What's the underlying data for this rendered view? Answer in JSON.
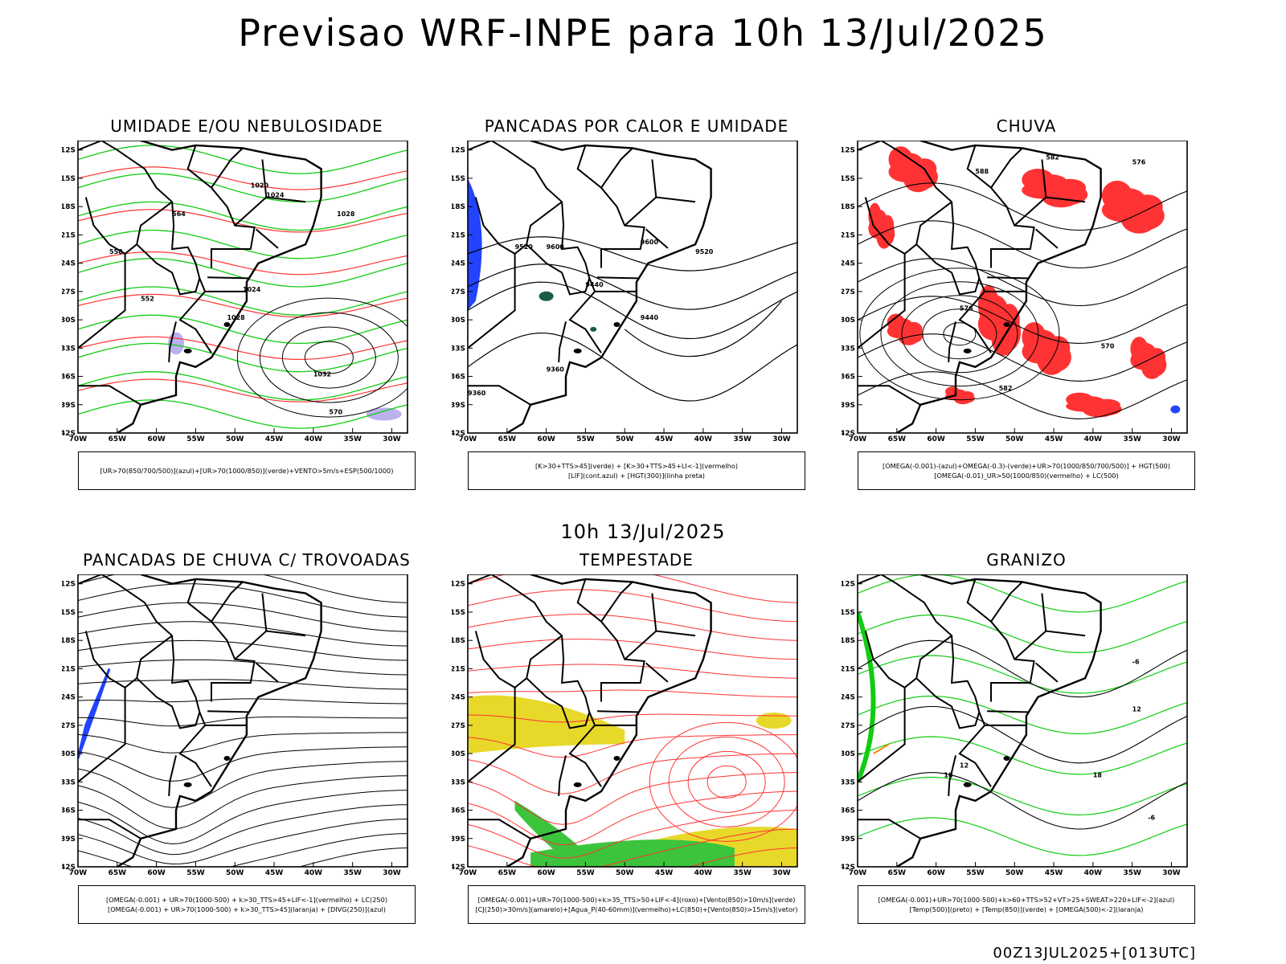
{
  "header": {
    "title": "Previsao WRF-INPE  para 10h 13/Jul/2025"
  },
  "mid_label": "10h 13/Jul/2025",
  "footer": "00Z13JUL2025+[013UTC]",
  "axes": {
    "lat_ticks": [
      "12S",
      "15S",
      "18S",
      "21S",
      "24S",
      "27S",
      "30S",
      "33S",
      "36S",
      "39S",
      "42S"
    ],
    "lon_ticks": [
      "70W",
      "65W",
      "60W",
      "55W",
      "50W",
      "45W",
      "40W",
      "35W",
      "30W"
    ]
  },
  "colors": {
    "land": "#000000",
    "green": "#11cc11",
    "red": "#ff3333",
    "blue": "#2244ff",
    "lavender": "#b9b2ee",
    "yellow": "#e8d82a",
    "darkgreen": "#1a5a4a",
    "orange": "#ff8800"
  },
  "panels": [
    {
      "id": "umidade",
      "title": "UMIDADE E/OU NEBULOSIDADE",
      "legend": [
        "[UR>70(850/700/500)](azul)+[UR>70(1000/850)](verde)+VENTO>5m/s+ESP(500/1000)"
      ],
      "labels": [
        "1020",
        "1024",
        "1028",
        "1032",
        "570",
        "564",
        "558",
        "552",
        "1024",
        "1028"
      ]
    },
    {
      "id": "pancadas-calor",
      "title": "PANCADAS POR CALOR E UMIDADE",
      "legend": [
        "[K>30+TTS>45](verde) + [K>30+TTS>45+LI<-1](vermelho)",
        "[LIF](cont.azul) + [HGT(300)](linha preta)"
      ],
      "labels": [
        "9520",
        "9600",
        "9440",
        "9360",
        "9520",
        "9600",
        "9440",
        "9360"
      ]
    },
    {
      "id": "chuva",
      "title": "CHUVA",
      "legend": [
        "[OMEGA(-0.001)-(azul)+OMEGA(-0.3)-(verde)+UR>70(1000/850/700/500)] + HGT(500)",
        "[OMEGA(-0.01)_UR>50(1000/850)(vermelho) + LC(500)"
      ],
      "labels": [
        "588",
        "582",
        "576",
        "570",
        "582",
        "576"
      ]
    },
    {
      "id": "pancadas-trovoadas",
      "title": "PANCADAS DE CHUVA C/ TROVOADAS",
      "legend": [
        "[OMEGA(-0.001) + UR>70(1000-500) + k>30_TTS>45+LIF<-1](vermelho) + LC(250)",
        "[OMEGA(-0.001) + UR>70(1000-500) + k>30_TTS>45](laranja) + [DIVG(250)](azul)"
      ],
      "labels": []
    },
    {
      "id": "tempestade",
      "title": "TEMPESTADE",
      "legend": [
        "[OMEGA(-0.001)+UR>70(1000-500)+k>35_TTS>50+LIF<-4](roxo)+[Vento(850)>10m/s](verde)",
        "[CJ(250)>30m/s](amarelo)+[Agua_P(40-60mm)](vermelho)+LC(850)+[Vento(850)>15m/s](vetor)"
      ],
      "labels": []
    },
    {
      "id": "granizo",
      "title": "GRANIZO",
      "legend": [
        "[OMEGA(-0.001)+UR>70(1000-500)+k>60+TTS>52+VT>25+SWEAT>220+LIF<-2](azul)",
        "[Temp(500)](preto) + [Temp(850)](verde) + [OMEGA(500)<-2](laranja)"
      ],
      "labels": [
        "-6",
        "12",
        "18",
        "-6",
        "12",
        "18"
      ]
    }
  ]
}
